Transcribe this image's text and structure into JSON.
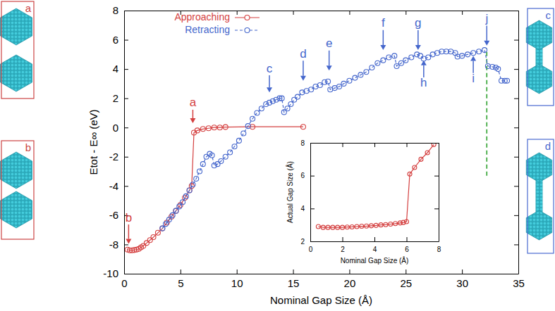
{
  "chart_data": [
    {
      "type": "line",
      "xlabel": "Nominal Gap Size (Å)",
      "ylabel": "Etot - E∞ (eV)",
      "xlim": [
        0,
        35
      ],
      "ylim": [
        -10,
        8
      ],
      "xticks": [
        0,
        5,
        10,
        15,
        20,
        25,
        30,
        35
      ],
      "yticks": [
        -10,
        -8,
        -6,
        -4,
        -2,
        0,
        2,
        4,
        6,
        8
      ],
      "legend": "upper left",
      "series": [
        {
          "name": "Approaching",
          "color": "#d43f3f",
          "marker": "circle",
          "line_style": "solid",
          "x": [
            0.3,
            0.5,
            0.7,
            0.9,
            1.1,
            1.3,
            1.5,
            1.7,
            2.0,
            2.3,
            2.6,
            3.0,
            3.4,
            3.8,
            4.2,
            4.6,
            5.0,
            5.4,
            5.8,
            6.0,
            6.2,
            6.5,
            7.0,
            7.5,
            8.0,
            8.5,
            9.0,
            11.4,
            15.9
          ],
          "values": [
            -8.35,
            -8.4,
            -8.4,
            -8.38,
            -8.35,
            -8.3,
            -8.2,
            -8.1,
            -7.9,
            -7.7,
            -7.5,
            -7.2,
            -6.9,
            -6.5,
            -6.1,
            -5.7,
            -5.3,
            -4.8,
            -4.3,
            -4.0,
            -0.35,
            -0.2,
            -0.1,
            -0.05,
            0.0,
            0.0,
            0.03,
            0.05,
            0.05
          ]
        },
        {
          "name": "Retracting",
          "color": "#4466cc",
          "marker": "circle",
          "line_style": "dashed",
          "x": [
            3.4,
            3.7,
            4.0,
            4.3,
            4.6,
            4.9,
            5.2,
            5.5,
            5.8,
            6.1,
            6.4,
            6.7,
            7.0,
            7.3,
            7.6,
            7.8,
            8.0,
            8.3,
            8.6,
            9.0,
            9.4,
            9.8,
            10.2,
            10.6,
            11.0,
            11.4,
            11.8,
            12.2,
            12.6,
            12.9,
            13.2,
            13.5,
            13.8,
            14.0,
            14.2,
            14.5,
            14.8,
            15.1,
            15.4,
            15.8,
            16.2,
            16.6,
            17.0,
            17.4,
            17.8,
            18.1,
            18.3,
            18.7,
            19.1,
            19.5,
            20.0,
            20.5,
            21.0,
            21.5,
            22.0,
            22.5,
            23.0,
            23.5,
            24.0,
            24.2,
            24.6,
            25.0,
            25.5,
            26.0,
            26.3,
            26.6,
            27.0,
            27.4,
            27.8,
            28.2,
            28.6,
            29.0,
            29.4,
            29.6,
            30.0,
            30.5,
            31.0,
            31.5,
            32.0,
            32.3,
            32.7,
            33.0,
            33.2,
            33.5,
            33.8,
            34.0
          ],
          "values": [
            -6.9,
            -6.6,
            -6.3,
            -6.0,
            -5.7,
            -5.4,
            -5.1,
            -4.7,
            -4.3,
            -3.9,
            -3.5,
            -3.0,
            -2.5,
            -2.0,
            -1.8,
            -1.9,
            -2.6,
            -2.5,
            -2.3,
            -2.0,
            -1.7,
            -1.3,
            -0.9,
            -0.4,
            0.1,
            0.6,
            1.0,
            1.3,
            1.6,
            1.7,
            1.8,
            1.9,
            2.0,
            2.0,
            1.05,
            1.3,
            1.6,
            1.9,
            2.1,
            2.4,
            2.5,
            2.6,
            2.8,
            2.9,
            3.1,
            3.15,
            2.6,
            2.7,
            2.8,
            3.0,
            3.2,
            3.4,
            3.6,
            3.8,
            4.1,
            4.4,
            4.6,
            4.8,
            4.9,
            4.2,
            4.4,
            4.6,
            4.8,
            5.0,
            4.9,
            4.7,
            4.8,
            5.0,
            5.1,
            5.2,
            5.2,
            5.2,
            5.1,
            4.85,
            4.9,
            5.0,
            5.1,
            5.2,
            5.3,
            4.2,
            4.15,
            4.1,
            4.0,
            3.2,
            3.2,
            3.2
          ]
        }
      ],
      "annotations": [
        {
          "text": "a",
          "x": 6.1,
          "y": 0.3,
          "y_text": 1.65,
          "color": "#d43f3f"
        },
        {
          "text": "b",
          "x": 0.4,
          "y": -7.95,
          "y_text": -6.2,
          "color": "#d43f3f"
        },
        {
          "text": "c",
          "x": 12.9,
          "y": 2.4,
          "y_text": 4.0,
          "color": "#4466cc"
        },
        {
          "text": "d",
          "x": 15.9,
          "y": 3.2,
          "y_text": 5.0,
          "color": "#4466cc"
        },
        {
          "text": "e",
          "x": 18.2,
          "y": 3.9,
          "y_text": 5.7,
          "color": "#4466cc"
        },
        {
          "text": "f",
          "x": 23.0,
          "y": 5.3,
          "y_text": 7.1,
          "color": "#4466cc"
        },
        {
          "text": "g",
          "x": 26.1,
          "y": 5.3,
          "y_text": 7.1,
          "color": "#4466cc"
        },
        {
          "text": "h",
          "x": 26.6,
          "y": 4.6,
          "y_text": 3.0,
          "color": "#4466cc"
        },
        {
          "text": "i",
          "x": 31.0,
          "y": 4.9,
          "y_text": 3.3,
          "color": "#4466cc"
        },
        {
          "text": "j",
          "x": 32.2,
          "y": 5.6,
          "y_text": 7.4,
          "color": "#4466cc"
        }
      ],
      "vlines": [
        {
          "x": 32.2,
          "y": [
            -3.3,
            5.4
          ],
          "color": "#2ca02c",
          "line_style": "dashed"
        }
      ],
      "panels": [
        {
          "label": "a",
          "color": "#cc4444"
        },
        {
          "label": "b",
          "color": "#cc4444"
        },
        {
          "label": "c",
          "color": "#4a6ad0"
        },
        {
          "label": "d",
          "color": "#4a6ad0"
        }
      ]
    },
    {
      "type": "line",
      "xlabel": "Nominal Gap Size (Å)",
      "ylabel": "Actual Gap Size (Å)",
      "xlim": [
        0,
        8
      ],
      "ylim": [
        2,
        8
      ],
      "xticks": [
        0,
        2,
        4,
        6,
        8
      ],
      "yticks": [
        2,
        4,
        6,
        8
      ],
      "series": [
        {
          "color": "#d43f3f",
          "marker": "circle",
          "line_style": "solid",
          "x": [
            0.5,
            0.8,
            1.1,
            1.4,
            1.7,
            2.0,
            2.3,
            2.6,
            2.9,
            3.2,
            3.5,
            3.8,
            4.1,
            4.4,
            4.7,
            5.0,
            5.3,
            5.6,
            5.8,
            6.0,
            6.2,
            6.5,
            6.9,
            7.3,
            7.7
          ],
          "values": [
            2.9,
            2.85,
            2.85,
            2.85,
            2.85,
            2.85,
            2.87,
            2.88,
            2.9,
            2.92,
            2.93,
            2.95,
            2.97,
            3.0,
            3.02,
            3.05,
            3.08,
            3.12,
            3.15,
            3.2,
            6.1,
            6.5,
            7.0,
            7.4,
            7.9
          ]
        }
      ]
    }
  ]
}
